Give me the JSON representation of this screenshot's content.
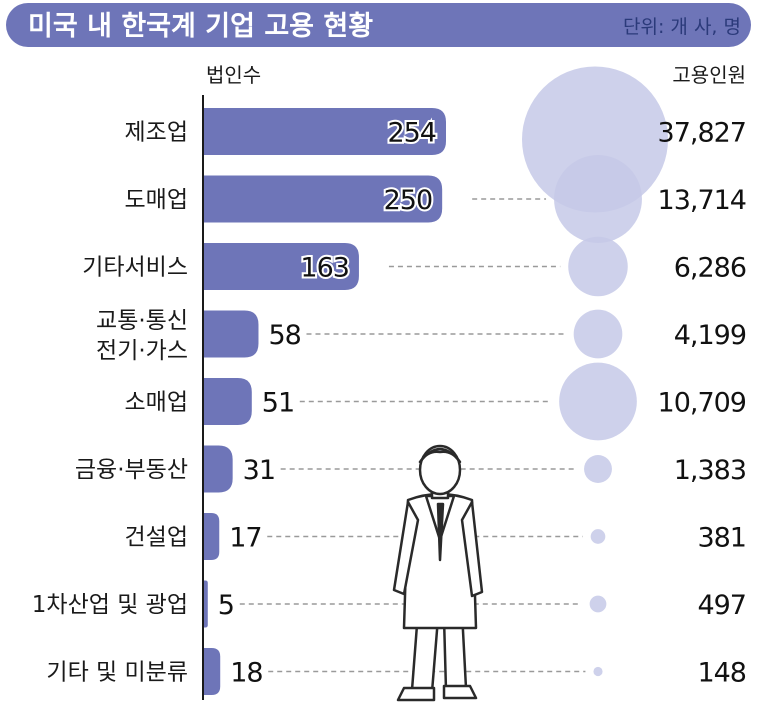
{
  "header": {
    "title": "미국 내 한국계 기업 고용 현황",
    "unit": "단위: 개 사, 명"
  },
  "colors": {
    "title_bar": "#6e75b8",
    "bar": "#6e75b8",
    "bubble": "#c6c9e8",
    "axis": "#1a1a1a",
    "dash": "#9a9a9a",
    "figure_fill": "#ffffff",
    "figure_stroke": "#2a2a2a"
  },
  "chart_data": {
    "type": "bar",
    "title": "미국 내 한국계 기업 고용 현황",
    "unit_note": "단위: 개 사, 명",
    "categories": [
      [
        "제조업"
      ],
      [
        "도매업"
      ],
      [
        "기타서비스"
      ],
      [
        "교통·통신",
        "전기·가스"
      ],
      [
        "소매업"
      ],
      [
        "금융·부동산"
      ],
      [
        "건설업"
      ],
      [
        "1차산업 및 광업"
      ],
      [
        "기타 및 미분류"
      ]
    ],
    "series": [
      {
        "name": "법인수",
        "values": [
          254,
          250,
          163,
          58,
          51,
          31,
          17,
          5,
          18
        ]
      },
      {
        "name": "고용인원",
        "values": [
          37827,
          13714,
          6286,
          4199,
          10709,
          1383,
          381,
          497,
          148
        ]
      }
    ],
    "value_labels": {
      "법인수": [
        "254",
        "250",
        "163",
        "58",
        "51",
        "31",
        "17",
        "5",
        "18"
      ],
      "고용인원": [
        "37,827",
        "13,714",
        "6,286",
        "4,199",
        "10,709",
        "1,383",
        "381",
        "497",
        "148"
      ]
    },
    "bar_axis_max": 254,
    "bubble_max": 37827,
    "grid": false,
    "legend": "none"
  }
}
